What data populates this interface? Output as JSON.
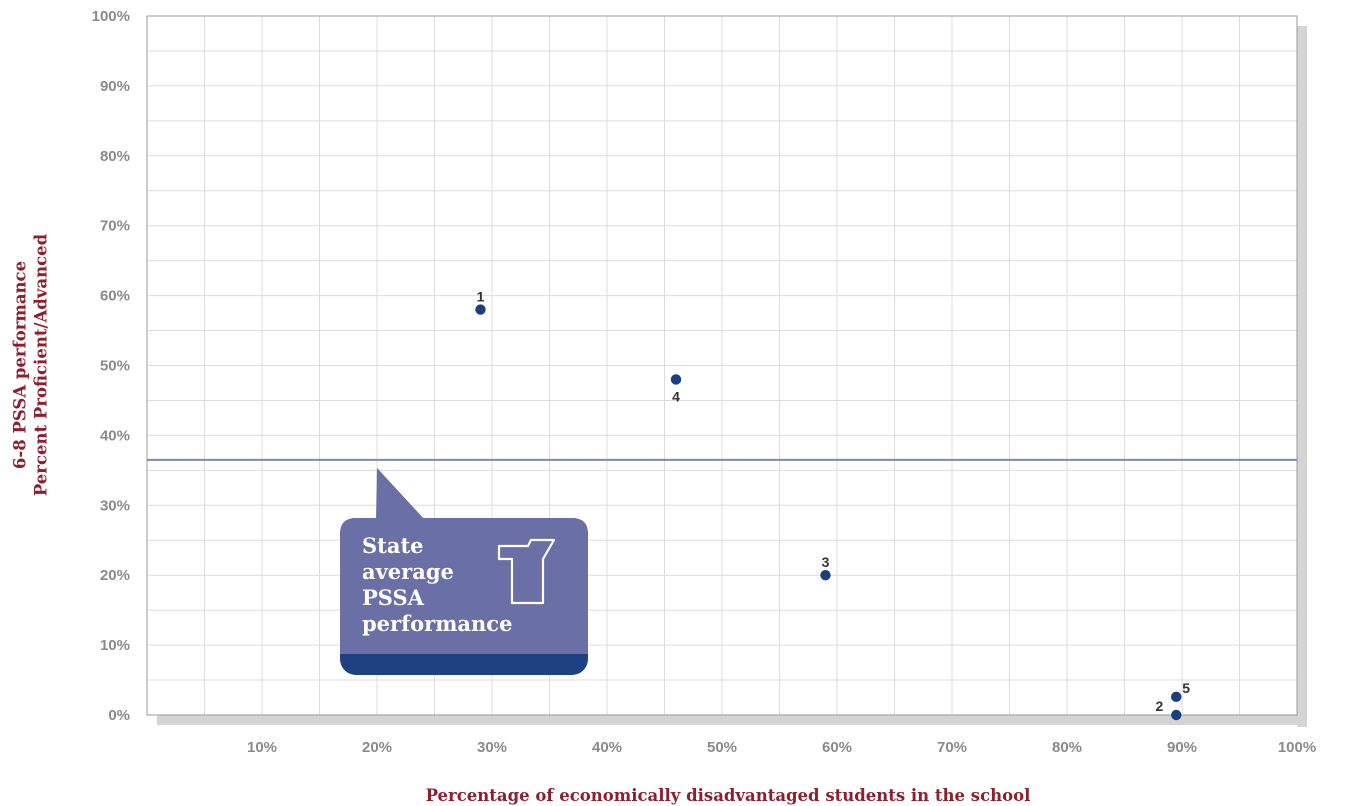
{
  "chart_data": {
    "type": "scatter",
    "xlabel": "Percentage of economically disadvantaged students in the school",
    "ylabel_lines": [
      "6-8 PSSA performance",
      "Percent Proficient/Advanced"
    ],
    "x_ticks": [
      "10%",
      "20%",
      "30%",
      "40%",
      "50%",
      "60%",
      "70%",
      "80%",
      "90%",
      "100%"
    ],
    "y_ticks": [
      "0%",
      "10%",
      "20%",
      "30%",
      "40%",
      "50%",
      "60%",
      "70%",
      "80%",
      "90%",
      "100%"
    ],
    "xlim": [
      0,
      100
    ],
    "ylim": [
      0,
      100
    ],
    "grid": true,
    "points": [
      {
        "label": "1",
        "x": 29,
        "y": 58,
        "label_pos": "above"
      },
      {
        "label": "2",
        "x": 89.5,
        "y": 0,
        "label_pos": "left"
      },
      {
        "label": "3",
        "x": 59,
        "y": 20,
        "label_pos": "above"
      },
      {
        "label": "4",
        "x": 46,
        "y": 48,
        "label_pos": "below"
      },
      {
        "label": "5",
        "x": 89.5,
        "y": 2.6,
        "label_pos": "right"
      }
    ],
    "reference_line": {
      "y": 36.5
    },
    "callout": {
      "lines": [
        "State",
        "average",
        "PSSA",
        "performance"
      ],
      "icon": "keystone-icon"
    },
    "colors": {
      "point": "#1b3f7e",
      "reference_line": "#7f86bd",
      "callout_fill": "#6a6fa6",
      "callout_band": "#1e4182",
      "axis_title": "#8c2030",
      "tick": "#8a8a8a",
      "grid": "#dcdcdc",
      "shadow": "#d4d4d4"
    }
  }
}
